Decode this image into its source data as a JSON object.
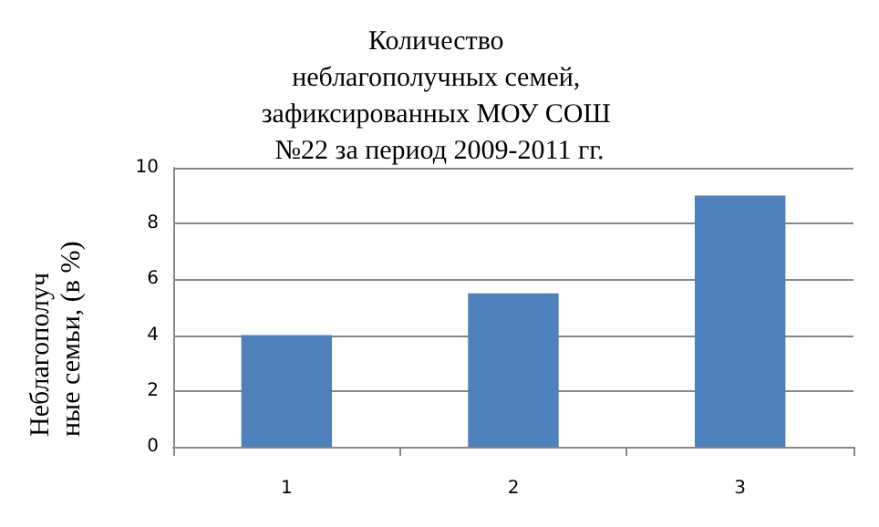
{
  "chart_data": {
    "type": "bar",
    "title": "Количество неблагополучных семей, зафиксированных МОУ СОШ №22 за период 2009-2011 гг.",
    "ylabel": "Неблагополучные семьи, (в %)",
    "categories": [
      "1",
      "2",
      "3"
    ],
    "values": [
      4,
      5.5,
      9
    ],
    "color": "#4f81bd",
    "ylim": [
      0,
      10
    ],
    "yticks": [
      0,
      2,
      4,
      6,
      8,
      10
    ],
    "grid": "y"
  }
}
